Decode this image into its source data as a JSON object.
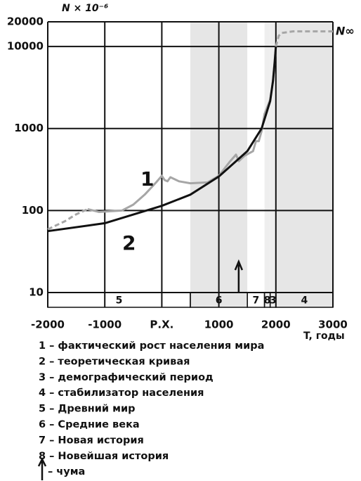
{
  "chart_data": {
    "type": "line",
    "y_label": "N × 10⁻⁶",
    "x_label": "T, годы",
    "annotation": "N∞",
    "log_y": true,
    "grid": true,
    "xlim": [
      -2000,
      3000
    ],
    "xticks": [
      -2000,
      -1000,
      {
        "value": 0,
        "label": "Р.Х."
      },
      1000,
      2000,
      3000
    ],
    "ylim": [
      10,
      20000
    ],
    "yticks": [
      10,
      100,
      1000,
      10000,
      20000
    ],
    "series": [
      {
        "name": "1",
        "color": "#a6a6a6",
        "style": "solid",
        "x": [
          -1300,
          -1100,
          -700,
          -500,
          -300,
          -100,
          0,
          50,
          100,
          150,
          300,
          500,
          800,
          1000,
          1200,
          1300,
          1350,
          1450,
          1600,
          1650,
          1700,
          1750,
          1800,
          1900,
          1950,
          2000
        ],
        "values": [
          104,
          96,
          100,
          118,
          156,
          220,
          265,
          235,
          227,
          255,
          227,
          215,
          220,
          265,
          400,
          480,
          400,
          465,
          530,
          700,
          700,
          930,
          1500,
          2250,
          3800,
          10000
        ]
      },
      {
        "color": "#a6a6a6",
        "style": "dashed",
        "x": [
          -2000,
          -1700,
          -1500,
          -1300
        ],
        "values": [
          59,
          74,
          90,
          104
        ]
      },
      {
        "color": "#a6a6a6",
        "style": "dashed",
        "x": [
          2000,
          2050,
          2100,
          2300,
          3000
        ],
        "values": [
          10000,
          13500,
          14600,
          15300,
          15300
        ]
      },
      {
        "name": "2",
        "color": "#111111",
        "style": "solid",
        "x": [
          -2000,
          -1000,
          0,
          500,
          1000,
          1500,
          1750,
          1900,
          1950,
          1980,
          2000
        ],
        "values": [
          56,
          70,
          114,
          156,
          260,
          530,
          1000,
          2160,
          3800,
          6600,
          10000
        ]
      }
    ],
    "eras": [
      {
        "label": "5",
        "start": -2000,
        "end": 500,
        "shade": "#ffffff"
      },
      {
        "label": "6",
        "start": 500,
        "end": 1500,
        "shade": "#e6e6e6"
      },
      {
        "label": "7",
        "start": 1500,
        "end": 1800,
        "shade": "#ffffff"
      },
      {
        "label": "8",
        "start": 1800,
        "end": 1900,
        "shade": "#eeeeee"
      },
      {
        "label": "3",
        "start": 1900,
        "end": 2000,
        "shade": "#eeeeee"
      },
      {
        "label": "4",
        "start": 2000,
        "end": 3000,
        "shade": "#e6e6e6"
      }
    ],
    "plague_year": 1348,
    "legend_items": [
      "1 – фактический рост населения мира",
      "2 – теоретическая кривая",
      "3 – демографический период",
      "4 – стабилизатор населения",
      "5 – Древний мир",
      "6 – Средние века",
      "7 – Новая история",
      "8 – Новейшая история",
      "– чума"
    ]
  }
}
